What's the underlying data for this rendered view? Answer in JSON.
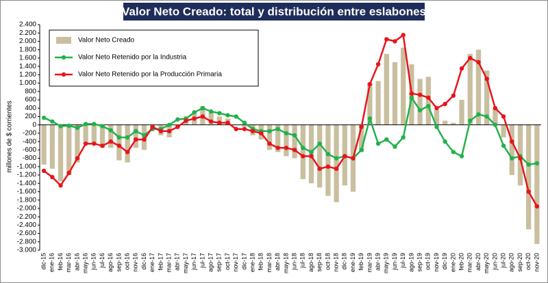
{
  "chart_data": {
    "type": "combo",
    "title": "Valor Neto Creado: total y distribución entre eslabones",
    "y_label": "millones de $ corrientes",
    "categories": [
      "dic-15",
      "ene-16",
      "feb-16",
      "mar-16",
      "abr-16",
      "may-16",
      "jun-16",
      "jul-16",
      "ago-16",
      "sep-16",
      "oct-16",
      "nov-16",
      "dic-16",
      "ene-17",
      "feb-17",
      "mar-17",
      "abr-17",
      "may-17",
      "jun-17",
      "jul-17",
      "ago-17",
      "sep-17",
      "oct-17",
      "nov-17",
      "dic-17",
      "ene-18",
      "feb-18",
      "mar-18",
      "abr-18",
      "may-18",
      "jun-18",
      "jul-18",
      "ago-18",
      "sep-18",
      "oct-18",
      "nov-18",
      "dic-18",
      "ene-19",
      "feb-19",
      "mar-19",
      "abr-19",
      "may-19",
      "jun-19",
      "jul-19",
      "ago-19",
      "sep-19",
      "oct-19",
      "nov-19",
      "dic-19",
      "ene-20",
      "feb-20",
      "mar-20",
      "abr-20",
      "may-20",
      "jun-20",
      "jul-20",
      "ago-20",
      "sep-20",
      "oct-20",
      "nov-20"
    ],
    "series": [
      {
        "name": "Valor Neto Creado",
        "kind": "bar",
        "color": "#c9bf9f",
        "values": [
          -950,
          -1050,
          -1350,
          -1200,
          -900,
          -450,
          -450,
          -550,
          -550,
          -850,
          -900,
          -550,
          -600,
          -100,
          -250,
          -300,
          -50,
          200,
          300,
          450,
          300,
          200,
          150,
          0,
          -50,
          -250,
          -350,
          -600,
          -650,
          -750,
          -800,
          -1300,
          -1400,
          -1500,
          -1700,
          -1850,
          -1450,
          -1600,
          -650,
          1000,
          1050,
          1700,
          1500,
          1850,
          1450,
          1100,
          1150,
          350,
          100,
          50,
          600,
          1700,
          1800,
          1300,
          400,
          -300,
          -1200,
          -1450,
          -2500,
          -2850
        ]
      },
      {
        "name": "Valor Neto Retenido por la Industria",
        "kind": "line",
        "color": "#22b14c",
        "values": [
          170,
          80,
          -30,
          -20,
          -70,
          20,
          20,
          -30,
          -130,
          -300,
          -300,
          -150,
          -250,
          -100,
          -100,
          0,
          130,
          150,
          300,
          400,
          320,
          280,
          230,
          200,
          50,
          -100,
          -150,
          -150,
          -100,
          -200,
          -250,
          -550,
          -650,
          -450,
          -700,
          -800,
          -750,
          -800,
          -600,
          150,
          -450,
          -350,
          -520,
          -300,
          650,
          350,
          450,
          -50,
          -400,
          -650,
          -750,
          100,
          250,
          200,
          0,
          -500,
          -800,
          -750,
          -950,
          -920
        ]
      },
      {
        "name": "Valor Neto Retenido por la Producción Primaria",
        "kind": "line",
        "color": "#e8141b",
        "values": [
          -1100,
          -1250,
          -1450,
          -1150,
          -800,
          -450,
          -450,
          -500,
          -400,
          -500,
          -650,
          -350,
          -350,
          -50,
          -150,
          -150,
          -50,
          100,
          150,
          200,
          80,
          50,
          50,
          -100,
          -100,
          -150,
          -200,
          -450,
          -550,
          -550,
          -600,
          -750,
          -750,
          -1050,
          -1000,
          -1050,
          -750,
          -800,
          -50,
          975,
          1450,
          2050,
          2000,
          2150,
          750,
          720,
          650,
          400,
          500,
          700,
          1350,
          1600,
          1500,
          1100,
          400,
          200,
          -400,
          -800,
          -1600,
          -1950
        ]
      }
    ],
    "ylim": [
      -3000,
      2400
    ],
    "yticks": [
      {
        "value": -3000,
        "label": "-3.000"
      },
      {
        "value": -2800,
        "label": "-2.800"
      },
      {
        "value": -2600,
        "label": "-2.600"
      },
      {
        "value": -2400,
        "label": "-2.400"
      },
      {
        "value": -2200,
        "label": "-2.200"
      },
      {
        "value": -2000,
        "label": "-2.000"
      },
      {
        "value": -1800,
        "label": "-1.800"
      },
      {
        "value": -1600,
        "label": "-1.600"
      },
      {
        "value": -1400,
        "label": "-1.400"
      },
      {
        "value": -1200,
        "label": "-1.200"
      },
      {
        "value": -1000,
        "label": "-1.000"
      },
      -800,
      -600,
      -400,
      -200,
      0,
      200,
      400,
      600,
      800,
      {
        "value": 1000,
        "label": "1.000"
      },
      {
        "value": 1200,
        "label": "1.200"
      },
      {
        "value": 1400,
        "label": "1.400"
      },
      {
        "value": 1600,
        "label": "1.600"
      },
      {
        "value": 1800,
        "label": "1.800"
      },
      {
        "value": 2000,
        "label": "2.000"
      },
      {
        "value": 2200,
        "label": "2.200"
      },
      {
        "value": 2400,
        "label": "2.400"
      }
    ],
    "grid": false,
    "legend": "top-left"
  }
}
